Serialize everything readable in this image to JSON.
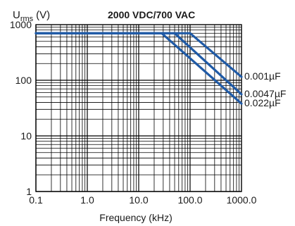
{
  "chart_data": {
    "type": "line",
    "title": "2000 VDC/700 VAC",
    "ylabel": {
      "main": "U",
      "subscript": "rms",
      "unit": "(V)"
    },
    "xlabel": "Frequency (kHz)",
    "x_scale": "log",
    "y_scale": "log",
    "xlim": [
      0.1,
      1000
    ],
    "ylim": [
      1,
      1000
    ],
    "x_ticks": [
      {
        "value": 0.1,
        "label": "0.1"
      },
      {
        "value": 1,
        "label": "1.0"
      },
      {
        "value": 10,
        "label": "10.0"
      },
      {
        "value": 100,
        "label": "100.0"
      },
      {
        "value": 1000,
        "label": "1000.0"
      }
    ],
    "y_ticks": [
      {
        "value": 1,
        "label": "1"
      },
      {
        "value": 10,
        "label": "10"
      },
      {
        "value": 100,
        "label": "100"
      },
      {
        "value": 1000,
        "label": "1000"
      }
    ],
    "grid": true,
    "series": [
      {
        "name": "0.001µF",
        "points": [
          [
            0.1,
            700
          ],
          [
            100,
            700
          ],
          [
            1000,
            115
          ]
        ]
      },
      {
        "name": "0.0047µF",
        "points": [
          [
            0.1,
            700
          ],
          [
            50,
            700
          ],
          [
            1000,
            56
          ]
        ]
      },
      {
        "name": "0.022µF",
        "points": [
          [
            0.1,
            700
          ],
          [
            28,
            700
          ],
          [
            1000,
            38
          ]
        ]
      }
    ],
    "line_color": "#1f5aa6",
    "grid_color": "#000000"
  }
}
